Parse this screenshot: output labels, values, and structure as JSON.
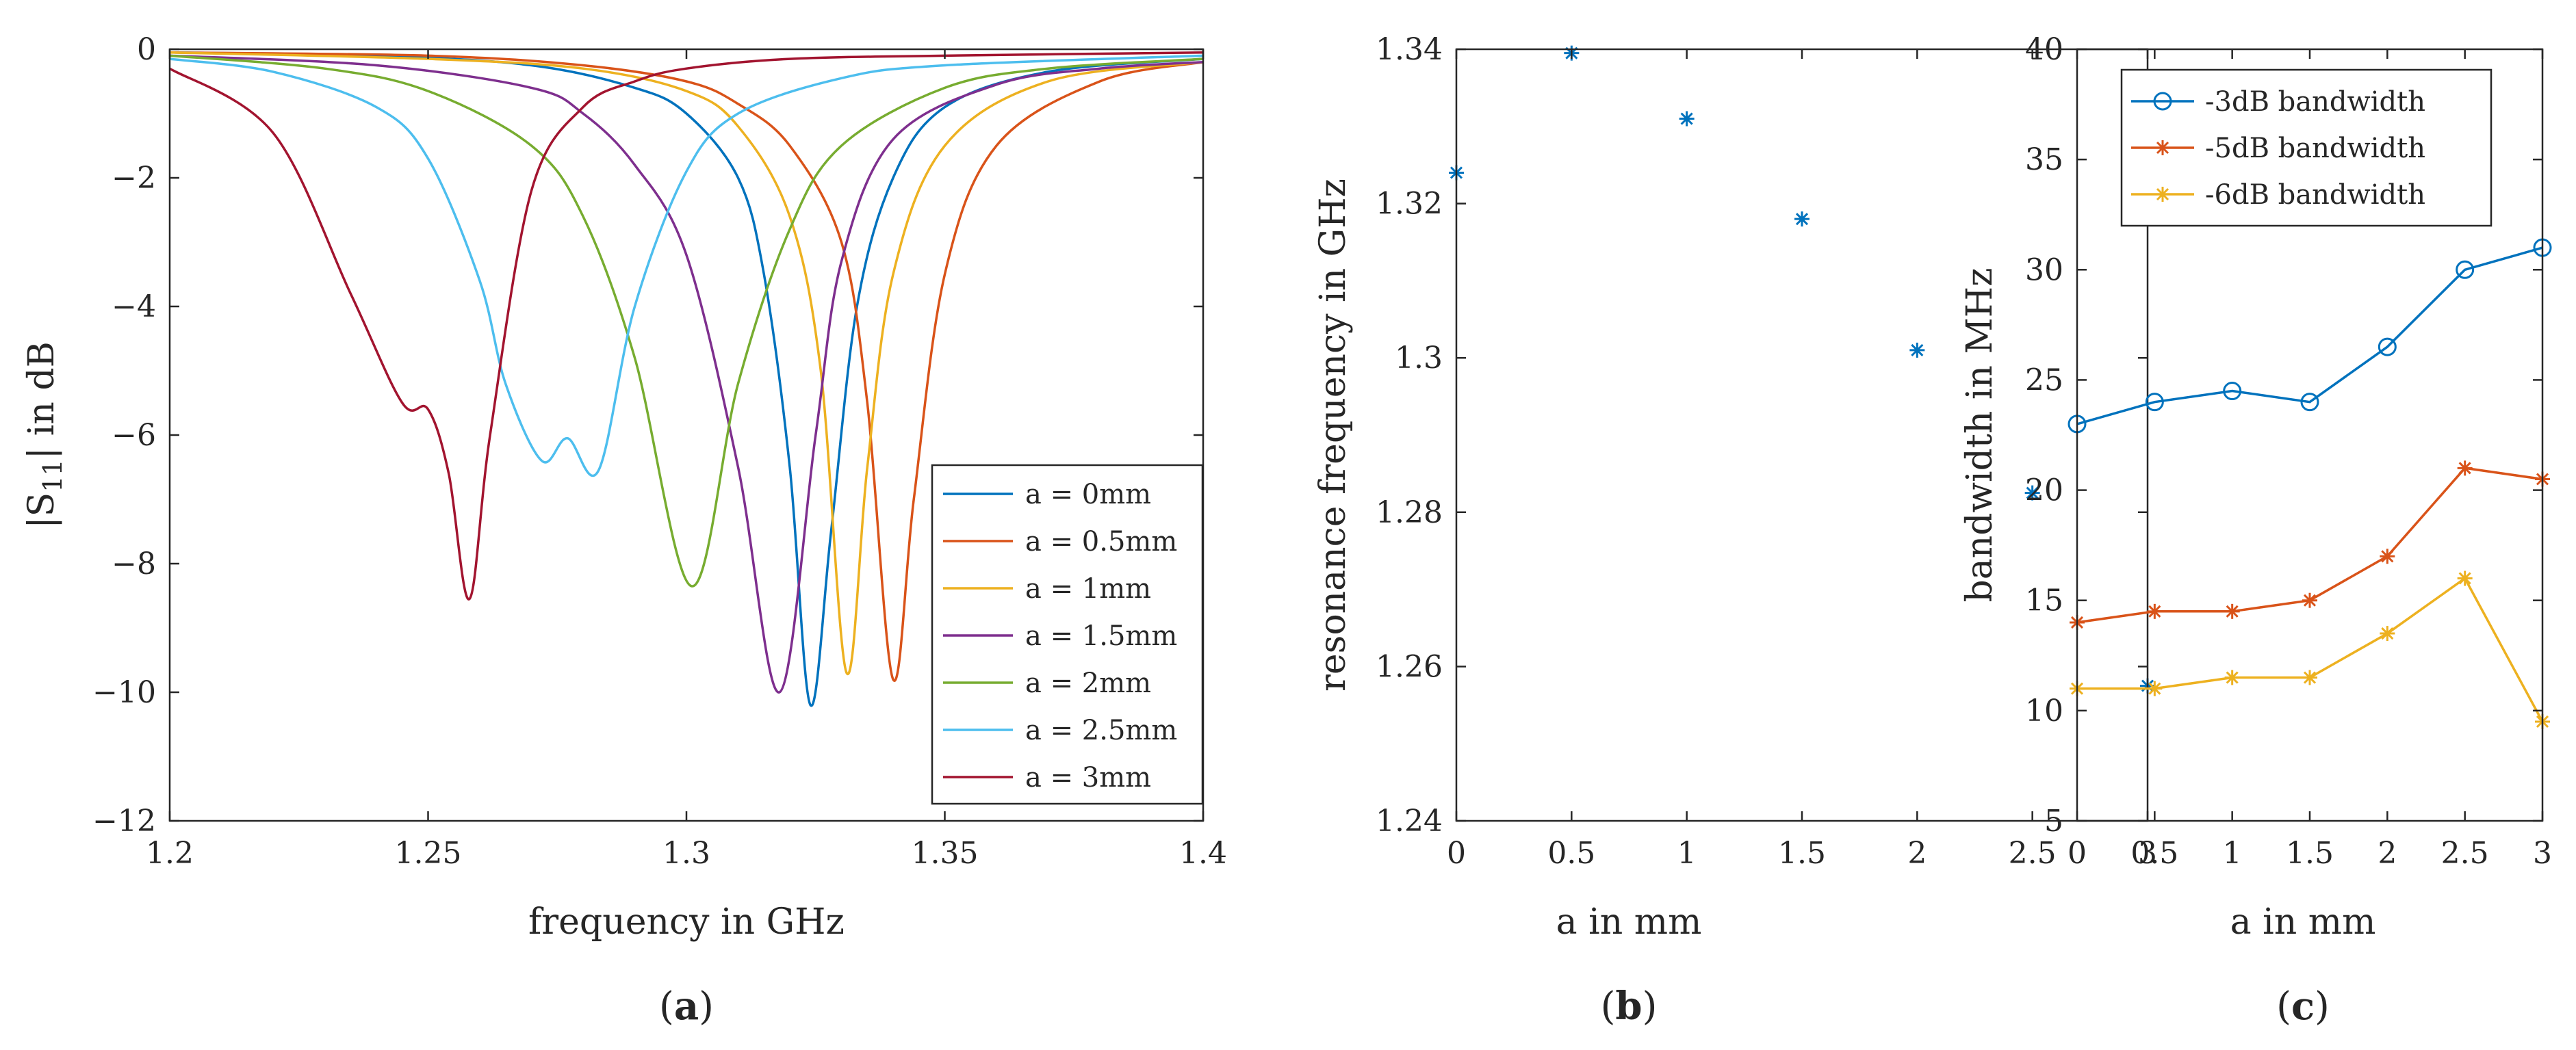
{
  "chart_data": [
    {
      "type": "line",
      "panel": "a",
      "caption_label": "a",
      "title": "",
      "xlabel": "frequency in GHz",
      "ylabel_main": "|S",
      "ylabel_sub": "11",
      "ylabel_end": "| in dB",
      "xlim": [
        1.2,
        1.4
      ],
      "ylim": [
        -12,
        0
      ],
      "xticks": [
        1.2,
        1.25,
        1.3,
        1.35,
        1.4
      ],
      "xtick_labels": [
        "1.2",
        "1.25",
        "1.3",
        "1.35",
        "1.4"
      ],
      "yticks": [
        -12,
        -10,
        -8,
        -6,
        -4,
        -2,
        0
      ],
      "ytick_labels": [
        "−12",
        "−10",
        "−8",
        "−6",
        "−4",
        "−2",
        "0"
      ],
      "legend_position": "bottom-right",
      "series": [
        {
          "name": "a = 0mm",
          "color": "#0072BD",
          "x": [
            1.2,
            1.24,
            1.27,
            1.29,
            1.3,
            1.31,
            1.315,
            1.32,
            1.324,
            1.328,
            1.333,
            1.34,
            1.35,
            1.37,
            1.4
          ],
          "y": [
            -0.05,
            -0.1,
            -0.25,
            -0.6,
            -1.0,
            -2.0,
            -3.5,
            -6.5,
            -10.2,
            -7.5,
            -4.0,
            -2.0,
            -0.9,
            -0.35,
            -0.15
          ]
        },
        {
          "name": "a = 0.5mm",
          "color": "#D95319",
          "x": [
            1.2,
            1.25,
            1.28,
            1.3,
            1.31,
            1.32,
            1.33,
            1.335,
            1.34,
            1.344,
            1.35,
            1.36,
            1.38,
            1.4
          ],
          "y": [
            -0.05,
            -0.1,
            -0.25,
            -0.5,
            -0.85,
            -1.5,
            -3.0,
            -5.5,
            -9.8,
            -7.0,
            -3.5,
            -1.5,
            -0.5,
            -0.2
          ]
        },
        {
          "name": "a = 1mm",
          "color": "#EDB120",
          "x": [
            1.2,
            1.25,
            1.28,
            1.3,
            1.31,
            1.32,
            1.326,
            1.331,
            1.335,
            1.34,
            1.35,
            1.37,
            1.4
          ],
          "y": [
            -0.05,
            -0.15,
            -0.3,
            -0.65,
            -1.2,
            -2.6,
            -5.0,
            -9.7,
            -6.5,
            -3.5,
            -1.5,
            -0.5,
            -0.2
          ]
        },
        {
          "name": "a = 1.5mm",
          "color": "#7E2F8E",
          "x": [
            1.2,
            1.24,
            1.27,
            1.28,
            1.29,
            1.3,
            1.31,
            1.318,
            1.325,
            1.33,
            1.34,
            1.36,
            1.38,
            1.4
          ],
          "y": [
            -0.1,
            -0.25,
            -0.6,
            -1.0,
            -1.8,
            -3.2,
            -6.5,
            -10.0,
            -6.0,
            -3.3,
            -1.4,
            -0.55,
            -0.3,
            -0.2
          ]
        },
        {
          "name": "a = 2mm",
          "color": "#77AC30",
          "x": [
            1.2,
            1.23,
            1.25,
            1.27,
            1.28,
            1.29,
            1.301,
            1.31,
            1.32,
            1.33,
            1.35,
            1.37,
            1.4
          ],
          "y": [
            -0.1,
            -0.3,
            -0.65,
            -1.5,
            -2.6,
            -4.8,
            -8.35,
            -5.2,
            -2.8,
            -1.5,
            -0.6,
            -0.3,
            -0.15
          ]
        },
        {
          "name": "a = 2.5mm",
          "color": "#4DBEEE",
          "x": [
            1.2,
            1.22,
            1.24,
            1.25,
            1.26,
            1.265,
            1.272,
            1.277,
            1.283,
            1.29,
            1.3,
            1.31,
            1.33,
            1.35,
            1.4
          ],
          "y": [
            -0.15,
            -0.35,
            -0.9,
            -1.7,
            -3.6,
            -5.2,
            -6.4,
            -6.05,
            -6.55,
            -4.0,
            -1.9,
            -1.0,
            -0.45,
            -0.25,
            -0.1
          ]
        },
        {
          "name": "a = 3mm",
          "color": "#A2142F",
          "x": [
            1.2,
            1.22,
            1.235,
            1.245,
            1.25,
            1.254,
            1.258,
            1.262,
            1.27,
            1.28,
            1.29,
            1.3,
            1.32,
            1.35,
            1.4
          ],
          "y": [
            -0.3,
            -1.3,
            -3.8,
            -5.5,
            -5.6,
            -6.6,
            -8.55,
            -6.0,
            -2.2,
            -0.9,
            -0.5,
            -0.3,
            -0.15,
            -0.1,
            -0.05
          ]
        }
      ]
    },
    {
      "type": "scatter",
      "panel": "b",
      "caption_label": "b",
      "title": "",
      "xlabel": "a in mm",
      "ylabel": "resonance frequency in GHz",
      "xlim": [
        0,
        3
      ],
      "ylim": [
        1.24,
        1.34
      ],
      "xticks": [
        0,
        0.5,
        1,
        1.5,
        2,
        2.5,
        3
      ],
      "xtick_labels": [
        "0",
        "0.5",
        "1",
        "1.5",
        "2",
        "2.5",
        "3"
      ],
      "yticks": [
        1.24,
        1.26,
        1.28,
        1.3,
        1.32,
        1.34
      ],
      "ytick_labels": [
        "1.24",
        "1.26",
        "1.28",
        "1.3",
        "1.32",
        "1.34"
      ],
      "series": [
        {
          "name": "resonance frequency",
          "color": "#0072BD",
          "marker": "*",
          "x": [
            0,
            0.5,
            1,
            1.5,
            2,
            2.5,
            3
          ],
          "y": [
            1.324,
            1.3395,
            1.331,
            1.318,
            1.301,
            1.2825,
            1.2575
          ]
        }
      ]
    },
    {
      "type": "line",
      "panel": "c",
      "caption_label": "c",
      "title": "",
      "xlabel": "a in mm",
      "ylabel": "bandwidth in MHz",
      "xlim": [
        0,
        3
      ],
      "ylim": [
        5,
        40
      ],
      "xticks": [
        0,
        0.5,
        1,
        1.5,
        2,
        2.5,
        3
      ],
      "xtick_labels": [
        "0",
        "0.5",
        "1",
        "1.5",
        "2",
        "2.5",
        "3"
      ],
      "yticks": [
        5,
        10,
        15,
        20,
        25,
        30,
        35,
        40
      ],
      "ytick_labels": [
        "5",
        "10",
        "15",
        "20",
        "25",
        "30",
        "35",
        "40"
      ],
      "legend_position": "top-left",
      "series": [
        {
          "name": "-3dB bandwidth",
          "color": "#0072BD",
          "marker": "o",
          "x": [
            0,
            0.5,
            1,
            1.5,
            2,
            2.5,
            3
          ],
          "y": [
            23,
            24,
            24.5,
            24,
            26.5,
            30,
            31
          ]
        },
        {
          "name": "-5dB bandwidth",
          "color": "#D95319",
          "marker": "*",
          "x": [
            0,
            0.5,
            1,
            1.5,
            2,
            2.5,
            3
          ],
          "y": [
            14,
            14.5,
            14.5,
            15,
            17,
            21,
            20.5
          ]
        },
        {
          "name": "-6dB bandwidth",
          "color": "#EDB120",
          "marker": "*",
          "x": [
            0,
            0.5,
            1,
            1.5,
            2,
            2.5,
            3
          ],
          "y": [
            11,
            11,
            11.5,
            11.5,
            13.5,
            16,
            9.5
          ]
        }
      ]
    }
  ]
}
